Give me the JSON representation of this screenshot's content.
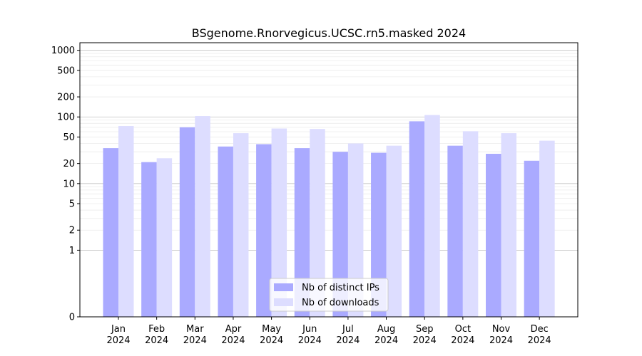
{
  "chart_data": {
    "type": "bar",
    "title": "BSgenome.Rnorvegicus.UCSC.rn5.masked 2024",
    "xlabel": "",
    "ylabel": "",
    "y_scale": "symlog",
    "ylim": [
      0,
      1300
    ],
    "y_ticks": [
      0,
      1,
      2,
      5,
      10,
      20,
      50,
      100,
      200,
      500,
      1000
    ],
    "y_tick_labels": [
      "0",
      "1",
      "2",
      "5",
      "10",
      "20",
      "50",
      "100",
      "200",
      "500",
      "1000"
    ],
    "grid": true,
    "legend_position": "bottom-center",
    "categories": [
      "Jan\n2024",
      "Feb\n2024",
      "Mar\n2024",
      "Apr\n2024",
      "May\n2024",
      "Jun\n2024",
      "Jul\n2024",
      "Aug\n2024",
      "Sep\n2024",
      "Oct\n2024",
      "Nov\n2024",
      "Dec\n2024"
    ],
    "series": [
      {
        "name": "Nb of distinct IPs",
        "color": "#aaaaff",
        "values": [
          34,
          21,
          70,
          36,
          39,
          34,
          30,
          29,
          86,
          37,
          28,
          22
        ]
      },
      {
        "name": "Nb of downloads",
        "color": "#ddddff",
        "values": [
          73,
          24,
          103,
          57,
          67,
          66,
          40,
          37,
          107,
          61,
          57,
          44
        ]
      }
    ]
  }
}
